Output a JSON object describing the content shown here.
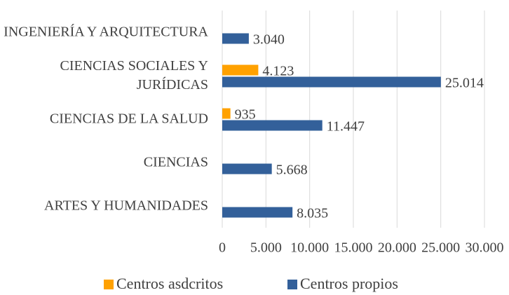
{
  "chart_data": {
    "type": "bar",
    "orientation": "horizontal",
    "categories": [
      "ARTES Y HUMANIDADES",
      "CIENCIAS",
      "CIENCIAS DE LA SALUD",
      "CIENCIAS SOCIALES Y JURÍDICAS",
      "INGENIERÍA Y ARQUITECTURA"
    ],
    "series": [
      {
        "name": "Centros asdcritos",
        "color": "#ffa100",
        "values": [
          null,
          null,
          935,
          4123,
          null
        ],
        "value_labels": [
          null,
          null,
          "935",
          "4.123",
          null
        ]
      },
      {
        "name": "Centros propios",
        "color": "#33609a",
        "values": [
          8035,
          5668,
          11447,
          25014,
          3040
        ],
        "value_labels": [
          "8.035",
          "5.668",
          "11.447",
          "25.014",
          "3.040"
        ]
      }
    ],
    "xlim": [
      0,
      30000
    ],
    "xticks": [
      0,
      {
        "value": 5000,
        "label": "5.000"
      },
      {
        "value": 10000,
        "label": "10.000"
      },
      {
        "value": 15000,
        "label": "15.000"
      },
      {
        "value": 20000,
        "label": "20.000"
      },
      {
        "value": 25000,
        "label": "25.000"
      },
      {
        "value": 30000,
        "label": "30.000"
      }
    ],
    "grid": true,
    "legend": "bottom"
  }
}
